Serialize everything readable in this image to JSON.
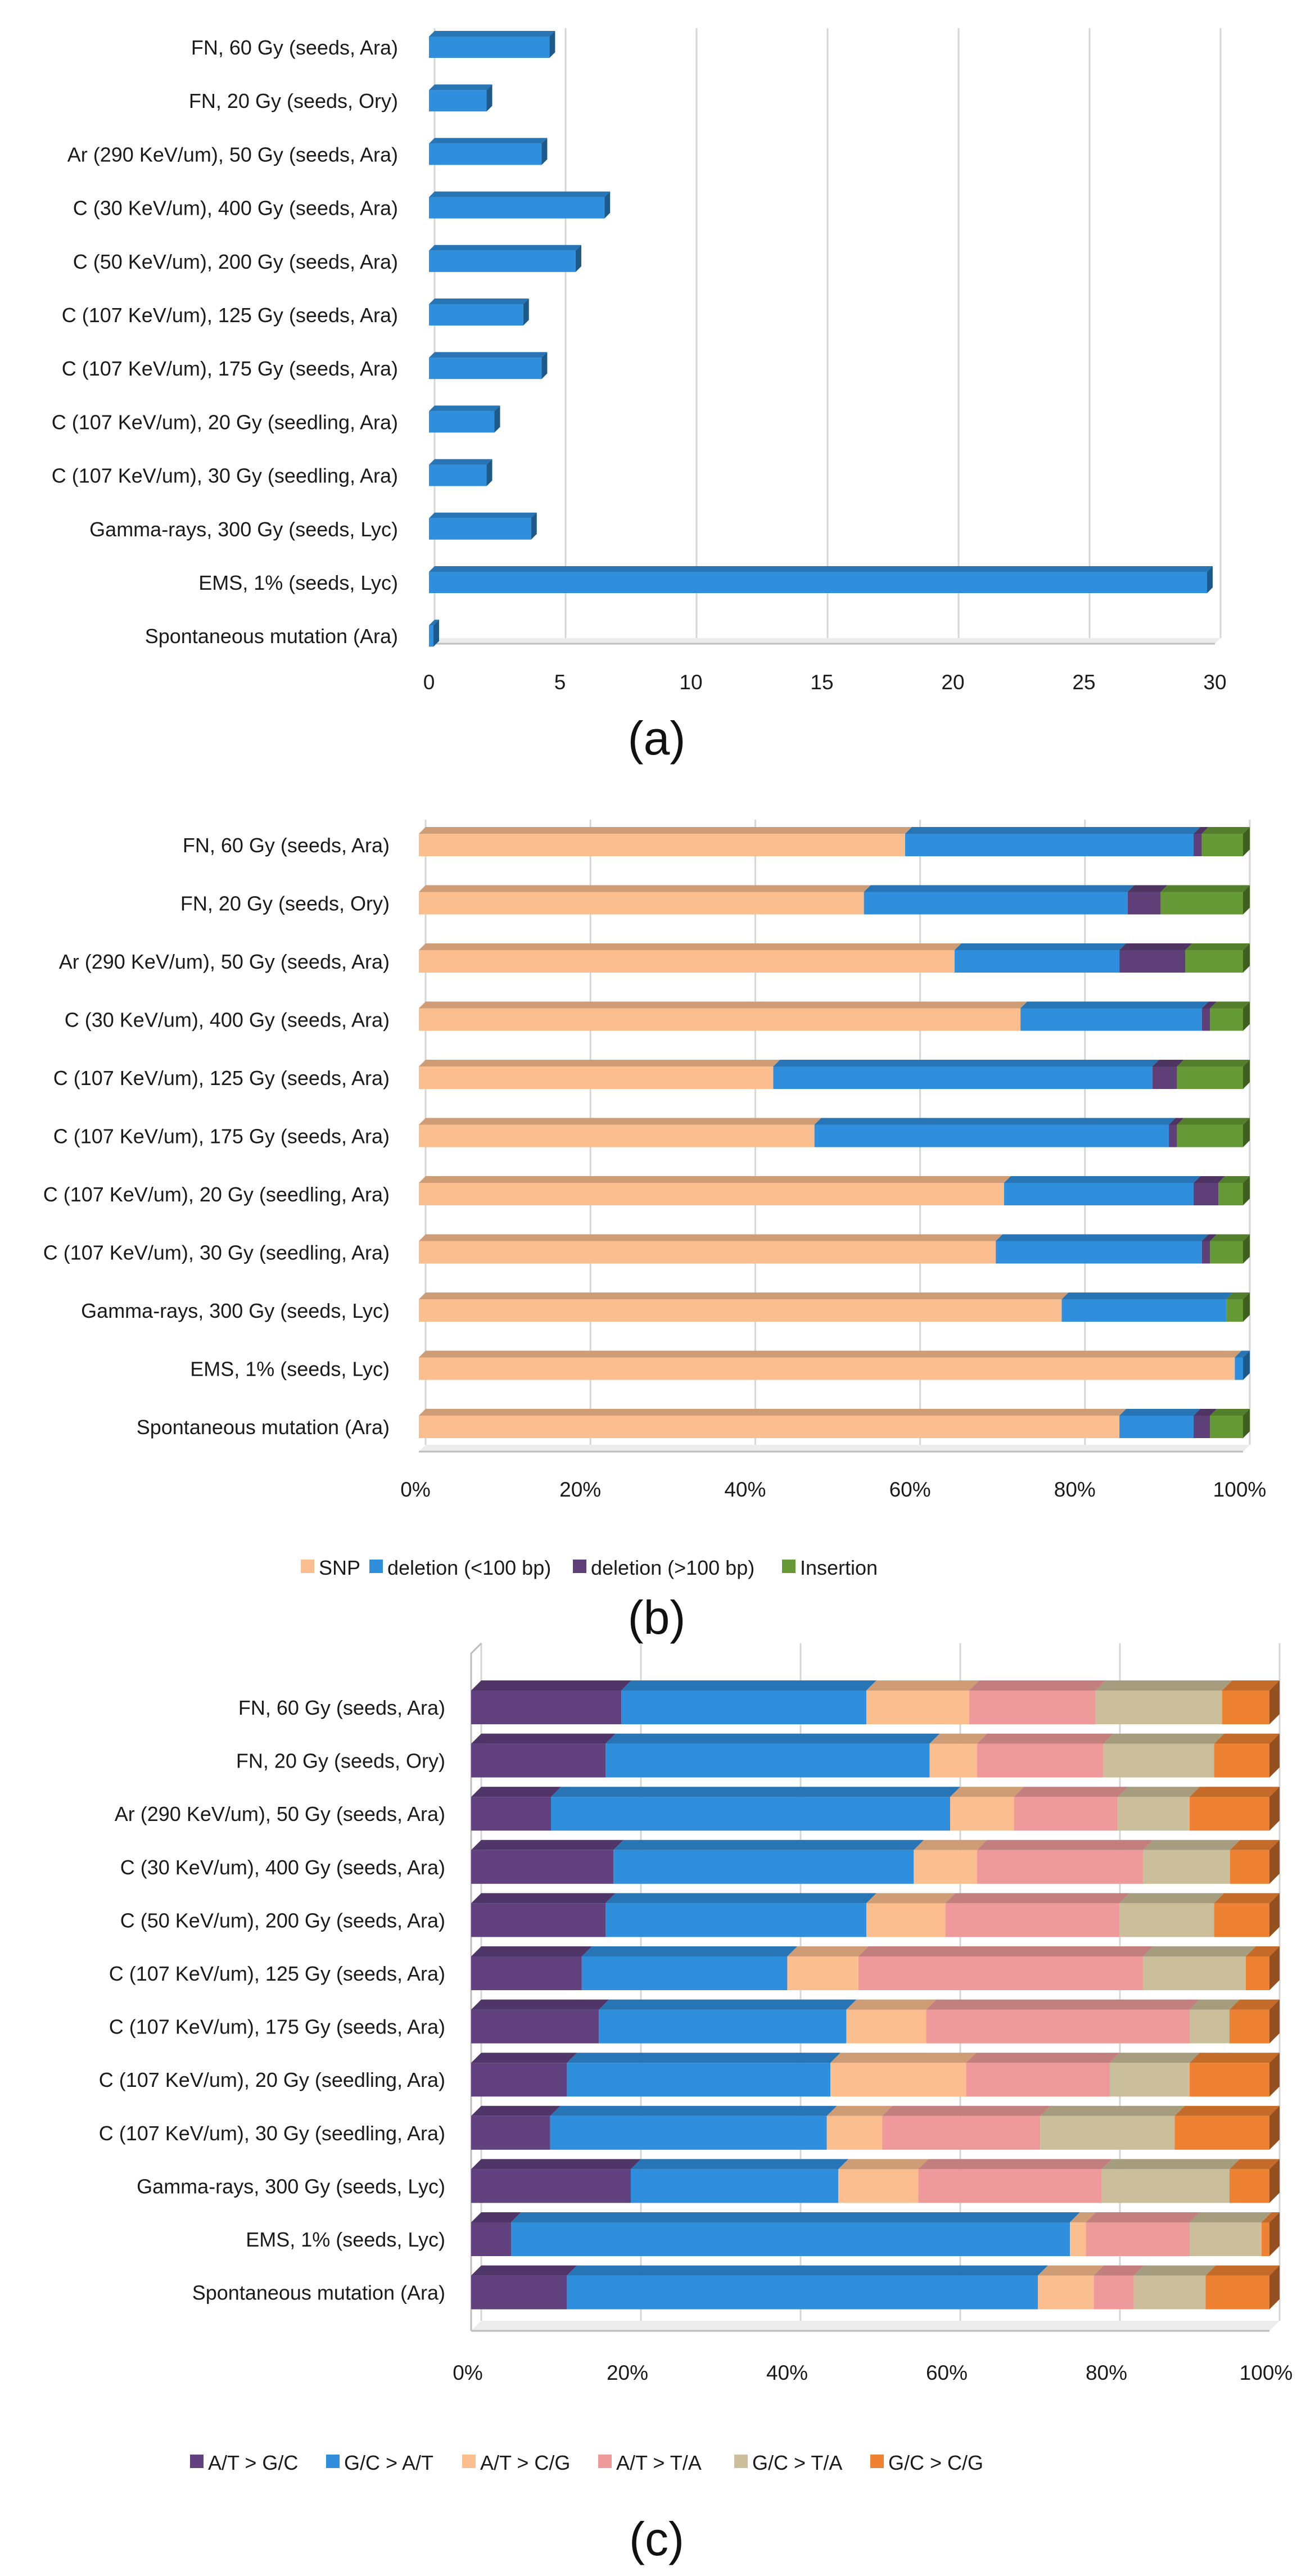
{
  "chart_data": [
    {
      "panel": "(a)",
      "type": "bar",
      "orientation": "horizontal",
      "categories": [
        "FN, 60 Gy (seeds, Ara)",
        "FN, 20 Gy (seeds, Ory)",
        "Ar (290 KeV/um), 50 Gy (seeds, Ara)",
        "C (30 KeV/um), 400 Gy (seeds, Ara)",
        "C (50 KeV/um), 200 Gy (seeds, Ara)",
        "C (107 KeV/um), 125 Gy (seeds, Ara)",
        "C (107 KeV/um), 175 Gy (seeds, Ara)",
        "C (107 KeV/um), 20 Gy (seedling, Ara)",
        "C (107 KeV/um), 30 Gy (seedling, Ara)",
        "Gamma-rays, 300 Gy (seeds, Lyc)",
        "EMS, 1% (seeds, Lyc)",
        "Spontaneous mutation (Ara)"
      ],
      "values": [
        4.6,
        2.2,
        4.3,
        6.7,
        5.6,
        3.6,
        4.3,
        2.5,
        2.2,
        3.9,
        29.7,
        0.1
      ],
      "xlim": [
        0,
        30
      ],
      "ticks": [
        "0",
        "5",
        "10",
        "15",
        "20",
        "25",
        "30"
      ],
      "color": "#2f8fdd",
      "grid": true
    },
    {
      "panel": "(b)",
      "type": "bar",
      "orientation": "horizontal",
      "stacked": "percent",
      "categories": [
        "FN, 60 Gy (seeds, Ara)",
        "FN, 20 Gy (seeds, Ory)",
        "Ar (290 KeV/um), 50 Gy (seeds, Ara)",
        "C (30 KeV/um), 400 Gy (seeds, Ara)",
        "C (107 KeV/um), 125 Gy (seeds, Ara)",
        "C (107 KeV/um), 175 Gy (seeds, Ara)",
        "C (107 KeV/um), 20 Gy (seedling, Ara)",
        "C (107 KeV/um), 30 Gy (seedling, Ara)",
        "Gamma-rays, 300 Gy (seeds, Lyc)",
        "EMS, 1% (seeds, Lyc)",
        "Spontaneous mutation (Ara)"
      ],
      "series": [
        {
          "name": "SNP",
          "color": "#fbbf8f",
          "values": [
            59,
            54,
            65,
            73,
            43,
            48,
            71,
            70,
            78,
            99,
            85
          ]
        },
        {
          "name": "deletion (<100 bp)",
          "color": "#2f8fdd",
          "values": [
            35,
            32,
            20,
            22,
            46,
            43,
            23,
            25,
            20,
            1,
            9
          ]
        },
        {
          "name": "deletion (>100 bp)",
          "color": "#5e3f78",
          "values": [
            1,
            4,
            8,
            1,
            3,
            1,
            3,
            1,
            0,
            0,
            2
          ]
        },
        {
          "name": "Insertion",
          "color": "#659a36",
          "values": [
            5,
            10,
            7,
            4,
            8,
            8,
            3,
            4,
            2,
            0,
            4
          ]
        }
      ],
      "ticks": [
        "0%",
        "20%",
        "40%",
        "60%",
        "80%",
        "100%"
      ],
      "grid": true,
      "legend_position": "bottom"
    },
    {
      "panel": "(c)",
      "type": "bar",
      "orientation": "horizontal",
      "stacked": "percent",
      "categories": [
        "FN, 60 Gy (seeds, Ara)",
        "FN, 20 Gy (seeds, Ory)",
        "Ar (290 KeV/um), 50 Gy (seeds, Ara)",
        "C (30 KeV/um), 400 Gy (seeds, Ara)",
        "C (50 KeV/um), 200 Gy (seeds, Ara)",
        "C (107 KeV/um), 125 Gy (seeds, Ara)",
        "C (107 KeV/um), 175 Gy (seeds, Ara)",
        "C (107 KeV/um), 20 Gy (seedling, Ara)",
        "C (107 KeV/um), 30 Gy (seedling, Ara)",
        "Gamma-rays, 300 Gy (seeds, Lyc)",
        "EMS, 1% (seeds, Lyc)",
        "Spontaneous mutation (Ara)"
      ],
      "series": [
        {
          "name": "A/T > G/C",
          "color": "#61427f",
          "values": [
            19,
            17,
            10,
            18,
            17,
            14,
            16,
            12,
            10,
            20,
            5,
            12
          ]
        },
        {
          "name": "G/C > A/T",
          "color": "#2f8fdd",
          "values": [
            31,
            41,
            50,
            38,
            33,
            26,
            31,
            33,
            35,
            26,
            70,
            59
          ]
        },
        {
          "name": "A/T > C/G",
          "color": "#fbbf8f",
          "values": [
            13,
            6,
            8,
            8,
            10,
            9,
            10,
            17,
            7,
            10,
            2,
            7
          ]
        },
        {
          "name": "A/T > T/A",
          "color": "#ee9a9a",
          "values": [
            16,
            16,
            13,
            21,
            22,
            36,
            33,
            18,
            20,
            23,
            13,
            5
          ]
        },
        {
          "name": "G/C > T/A",
          "color": "#cbbf9b",
          "values": [
            16,
            14,
            9,
            11,
            12,
            13,
            5,
            10,
            17,
            16,
            9,
            9
          ]
        },
        {
          "name": "G/C > C/G",
          "color": "#ef8232",
          "values": [
            6,
            7,
            10,
            5,
            7,
            3,
            5,
            10,
            12,
            5,
            1,
            8
          ]
        }
      ],
      "ticks": [
        "0%",
        "20%",
        "40%",
        "60%",
        "80%",
        "100%"
      ],
      "grid": true,
      "legend_position": "bottom"
    }
  ]
}
